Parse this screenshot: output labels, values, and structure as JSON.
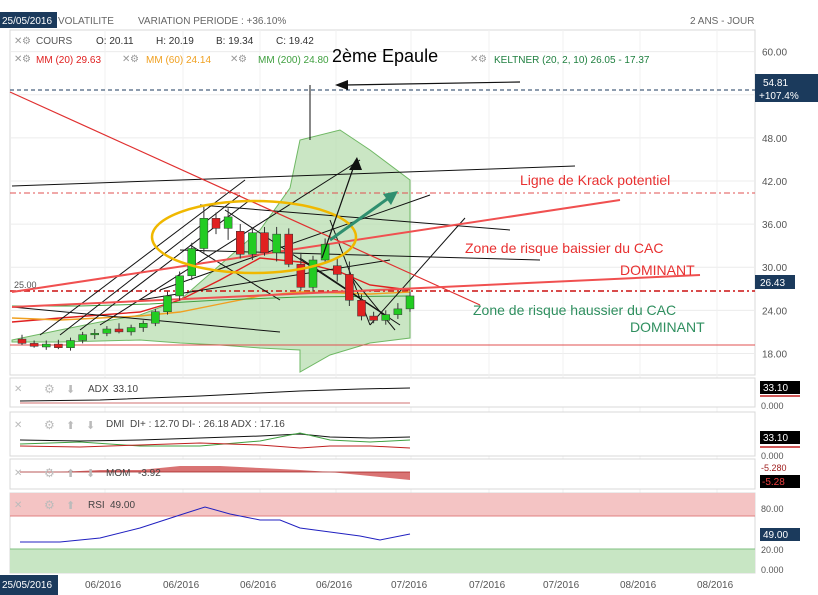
{
  "header": {
    "date_tag": "25/05/2016",
    "title_fragment": "VOLATILITE",
    "variation": "VARIATION PERIODE : +36.10%",
    "period": "2 ANS - JOUR"
  },
  "legend": {
    "cours_label": "COURS",
    "ohlc": [
      "O: 20.11",
      "H: 20.19",
      "B: 19.34",
      "C: 19.42"
    ],
    "mm20": "MM (20)  29.63",
    "mm60": "MM (60)  24.14",
    "mm200": "MM (200)  24.80",
    "keltner": "KELTNER (20, 2, 10)  26.05 - 17.37"
  },
  "colors": {
    "mm20": "#e02020",
    "mm60": "#f0a020",
    "mm200": "#40a040",
    "keltner": "#208040",
    "keltner_fill": "#b8ddb0",
    "up_candle": "#22cc22",
    "down_candle": "#e02020",
    "axis_tag": "#1b3a5c"
  },
  "annotations": {
    "epaule": "2ème Epaule",
    "krack": "Ligne de Krack potentiel",
    "baissier_line1": "Zone de risque baissier du CAC",
    "baissier_line2": "DOMINANT",
    "haussier_line1": "Zone de risque haussier du CAC",
    "haussier_line2": "DOMINANT"
  },
  "price_tags": {
    "level_top": "54.81",
    "level_top_pct": "+107.4%",
    "last": "26.43",
    "left_level": "25.00"
  },
  "indicators": {
    "adx": {
      "label": "ADX",
      "value_text": "33.10",
      "tag": "33.10",
      "zero": "0.000"
    },
    "dmi": {
      "label": "DMI",
      "value_text": "DI+ : 12.70  DI- : 26.18  ADX : 17.16",
      "tag": "33.10",
      "zero": "0.000"
    },
    "mom": {
      "label": "MOM",
      "value_text": "-3.92",
      "tag": "-5.28",
      "neg": "-5.280"
    },
    "rsi": {
      "label": "RSI",
      "value_text": "49.00",
      "tag": "49.00",
      "ticks": [
        "80.00",
        "20.00",
        "0.000"
      ]
    }
  },
  "x_dates": [
    "06/2016",
    "06/2016",
    "06/2016",
    "06/2016",
    "07/2016",
    "07/2016",
    "07/2016",
    "08/2016",
    "08/2016"
  ],
  "bottom_date": "25/05/2016",
  "chart_data": {
    "type": "candlestick",
    "y_ticks": [
      "60.00",
      "54.00",
      "48.00",
      "42.00",
      "36.00",
      "30.00",
      "24.00",
      "18.00"
    ],
    "y_tick_values": [
      60,
      54,
      48,
      42,
      36,
      30,
      24,
      18
    ],
    "ylim": [
      15,
      63
    ],
    "candles": [
      {
        "o": 20.0,
        "h": 20.6,
        "l": 19.2,
        "c": 19.4
      },
      {
        "o": 19.4,
        "h": 19.8,
        "l": 18.8,
        "c": 19.0
      },
      {
        "o": 18.9,
        "h": 19.8,
        "l": 18.5,
        "c": 19.3
      },
      {
        "o": 19.3,
        "h": 19.9,
        "l": 18.6,
        "c": 18.8
      },
      {
        "o": 18.8,
        "h": 20.2,
        "l": 18.4,
        "c": 19.8
      },
      {
        "o": 19.8,
        "h": 21.0,
        "l": 19.4,
        "c": 20.6
      },
      {
        "o": 20.6,
        "h": 21.4,
        "l": 20.0,
        "c": 20.8
      },
      {
        "o": 20.8,
        "h": 21.8,
        "l": 20.4,
        "c": 21.4
      },
      {
        "o": 21.4,
        "h": 22.2,
        "l": 20.8,
        "c": 21.0
      },
      {
        "o": 21.0,
        "h": 22.0,
        "l": 20.5,
        "c": 21.6
      },
      {
        "o": 21.6,
        "h": 22.6,
        "l": 21.0,
        "c": 22.2
      },
      {
        "o": 22.2,
        "h": 24.2,
        "l": 21.8,
        "c": 23.8
      },
      {
        "o": 23.8,
        "h": 26.6,
        "l": 23.4,
        "c": 26.0
      },
      {
        "o": 26.0,
        "h": 29.4,
        "l": 25.4,
        "c": 28.8
      },
      {
        "o": 28.8,
        "h": 33.4,
        "l": 28.2,
        "c": 32.6
      },
      {
        "o": 32.6,
        "h": 38.4,
        "l": 32.0,
        "c": 36.8
      },
      {
        "o": 36.8,
        "h": 37.6,
        "l": 34.6,
        "c": 35.4
      },
      {
        "o": 35.4,
        "h": 38.2,
        "l": 33.8,
        "c": 37.0
      },
      {
        "o": 35.0,
        "h": 36.0,
        "l": 31.2,
        "c": 31.8
      },
      {
        "o": 31.8,
        "h": 35.4,
        "l": 31.0,
        "c": 34.8
      },
      {
        "o": 34.8,
        "h": 35.6,
        "l": 31.6,
        "c": 32.0
      },
      {
        "o": 32.0,
        "h": 35.6,
        "l": 30.8,
        "c": 34.6
      },
      {
        "o": 34.6,
        "h": 35.4,
        "l": 30.0,
        "c": 30.4
      },
      {
        "o": 30.4,
        "h": 32.0,
        "l": 26.8,
        "c": 27.2
      },
      {
        "o": 27.2,
        "h": 31.6,
        "l": 26.6,
        "c": 31.0
      },
      {
        "o": 31.0,
        "h": 34.0,
        "l": 30.6,
        "c": 33.2
      },
      {
        "o": 30.2,
        "h": 31.2,
        "l": 28.0,
        "c": 29.0
      },
      {
        "o": 29.0,
        "h": 30.8,
        "l": 24.6,
        "c": 25.4
      },
      {
        "o": 25.4,
        "h": 26.2,
        "l": 22.6,
        "c": 23.2
      },
      {
        "o": 23.2,
        "h": 23.8,
        "l": 22.2,
        "c": 22.6
      },
      {
        "o": 22.6,
        "h": 24.0,
        "l": 22.0,
        "c": 23.4
      },
      {
        "o": 23.4,
        "h": 25.0,
        "l": 22.8,
        "c": 24.2
      },
      {
        "o": 24.2,
        "h": 26.6,
        "l": 23.8,
        "c": 26.0
      }
    ]
  }
}
